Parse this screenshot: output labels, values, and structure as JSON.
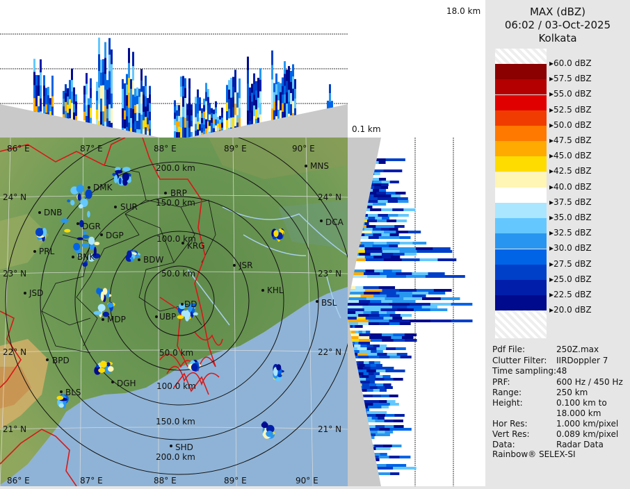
{
  "title": {
    "product": "MAX (dBZ)",
    "datetime": "06:02 / 03-Oct-2025",
    "station": "Kolkata"
  },
  "height_top_label": "18.0 km",
  "height_bottom_label": "0.1 km",
  "legend": [
    {
      "label": "60.0 dBZ",
      "color": ""
    },
    {
      "label": "57.5 dBZ",
      "color": "#8b0000"
    },
    {
      "label": "55.0 dBZ",
      "color": "#b40000"
    },
    {
      "label": "52.5 dBZ",
      "color": "#e00000"
    },
    {
      "label": "50.0 dBZ",
      "color": "#f03c00"
    },
    {
      "label": "47.5 dBZ",
      "color": "#ff7800"
    },
    {
      "label": "45.0 dBZ",
      "color": "#ffaa00"
    },
    {
      "label": "42.5 dBZ",
      "color": "#ffdc00"
    },
    {
      "label": "40.0 dBZ",
      "color": "#fff5b4"
    },
    {
      "label": "37.5 dBZ",
      "color": "#ffffff"
    },
    {
      "label": "35.0 dBZ",
      "color": "#aae6ff"
    },
    {
      "label": "32.5 dBZ",
      "color": "#64c8ff"
    },
    {
      "label": "30.0 dBZ",
      "color": "#2896f0"
    },
    {
      "label": "27.5 dBZ",
      "color": "#0064e6"
    },
    {
      "label": "25.0 dBZ",
      "color": "#0040c8"
    },
    {
      "label": "22.5 dBZ",
      "color": "#001eaa"
    },
    {
      "label": "20.0 dBZ",
      "color": "#000a8c"
    }
  ],
  "info": [
    {
      "key": "Pdf File:",
      "value": "250Z.max"
    },
    {
      "key": "Clutter Filter:",
      "value": "IIRDoppler 7"
    },
    {
      "key": "Time sampling:",
      "value": "48"
    },
    {
      "key": "PRF:",
      "value": "600 Hz / 450 Hz"
    },
    {
      "key": "Range:",
      "value": "250 km"
    },
    {
      "key": "Height:",
      "value": "0.100 km to"
    },
    {
      "key": "",
      "value": "18.000 km"
    },
    {
      "key": "Hor Res:",
      "value": "1.000 km/pixel"
    },
    {
      "key": "Vert Res:",
      "value": "0.089 km/pixel"
    },
    {
      "key": "Data:",
      "value": "Radar Data"
    }
  ],
  "footer": "Rainbow® SELEX-SI",
  "map": {
    "lon_labels_top": [
      "86° E",
      "87° E",
      "88° E",
      "89° E",
      "90° E"
    ],
    "lon_labels_bottom": [
      "86° E",
      "87° E",
      "88° E",
      "89° E",
      "90° E"
    ],
    "lat_labels_left": [
      "24° N",
      "23° N",
      "22° N",
      "21° N"
    ],
    "lat_labels_right": [
      "24° N",
      "23° N",
      "22° N",
      "21° N"
    ],
    "range_rings": [
      "50.0 km",
      "100.0 km",
      "150.0 km",
      "200.0 km"
    ],
    "range_rings_lower": [
      "50.0 km",
      "100.0 km",
      "150.0 km",
      "200.0 km"
    ],
    "cities": [
      "MNS",
      "DMK",
      "BRP",
      "SUR",
      "DNB",
      "DCA",
      "DGR",
      "DGP",
      "KRG",
      "PRL",
      "BNK",
      "BDW",
      "JSR",
      "KHL",
      "JSD",
      "DD",
      "BSL",
      "MDP",
      "UBP",
      "BPD",
      "DGH",
      "BLS",
      "SHD"
    ]
  }
}
